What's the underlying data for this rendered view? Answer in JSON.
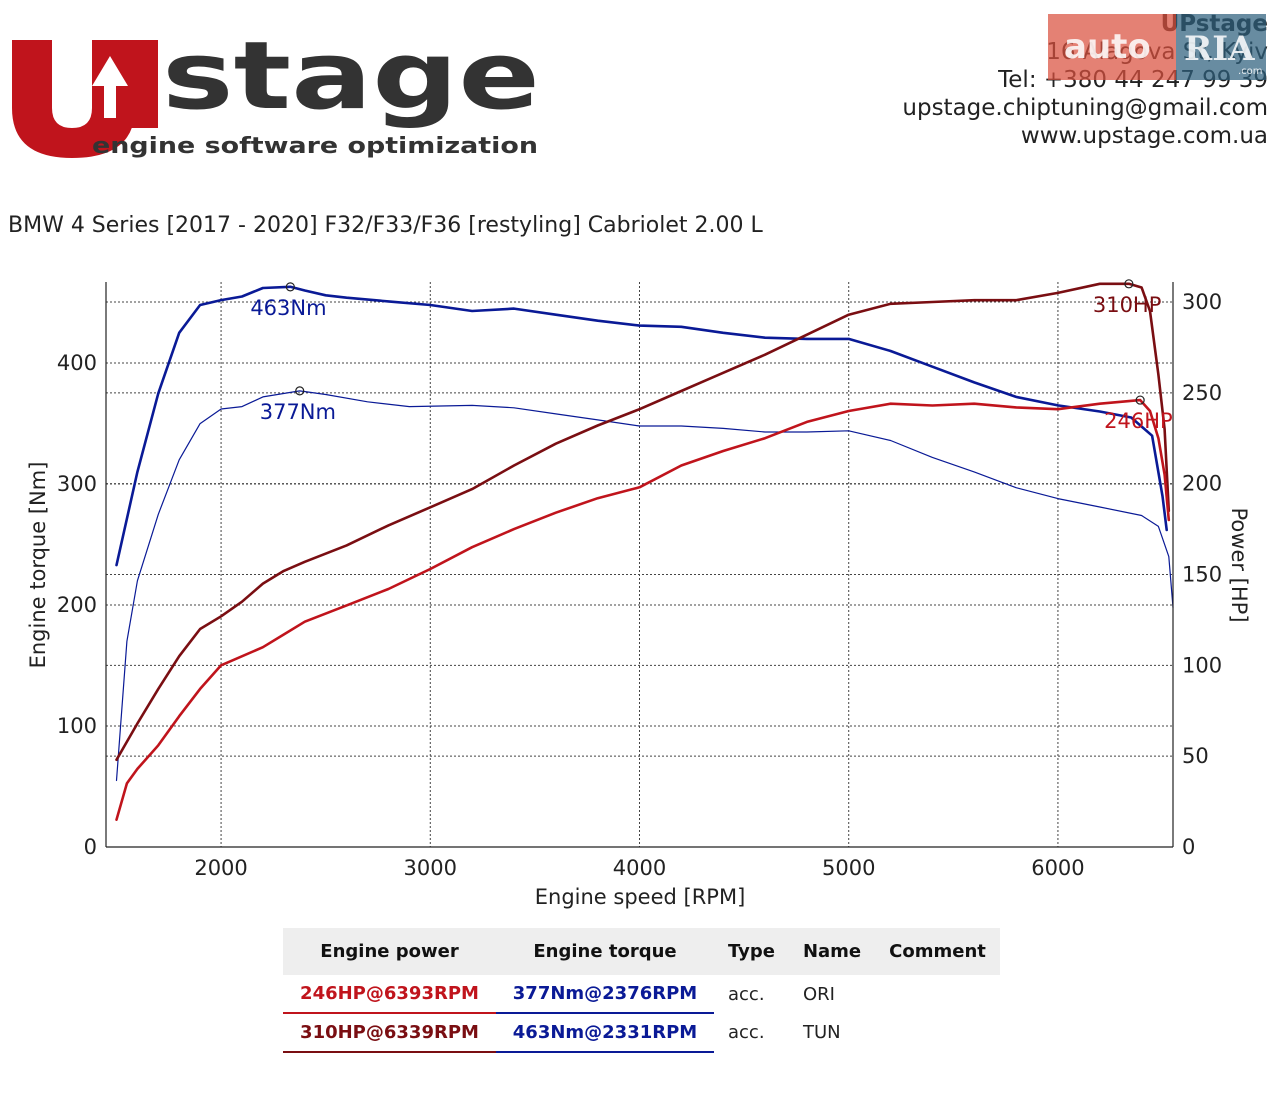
{
  "brand": {
    "logo_letters": "stage",
    "tagline": "engine software optimization",
    "colors": {
      "red": "#c0141c",
      "dark": "#333333"
    }
  },
  "company": {
    "name": "UPstage",
    "address": "16 Alagova St, Kyiv",
    "phone": "Tel: +380 44 247 99 39",
    "email": "upstage.chiptuning@gmail.com",
    "website": "www.upstage.com.ua"
  },
  "watermark": {
    "text": "auto",
    "text2": "RIA",
    "suffix": ".com"
  },
  "vehicle_title": "BMW 4 Series [2017 - 2020] F32/F33/F36 [restyling] Cabriolet 2.00 L",
  "chart_data": {
    "type": "line",
    "xlabel": "Engine speed [RPM]",
    "ylabel_left": "Engine torque [Nm]",
    "ylabel_right": "Power [HP]",
    "xlim": [
      1450,
      6550
    ],
    "ylim_left": [
      0,
      467
    ],
    "ylim_right": [
      0,
      311
    ],
    "x_ticks": [
      2000,
      3000,
      4000,
      5000,
      6000
    ],
    "y_ticks_left": [
      0,
      100,
      200,
      300,
      400
    ],
    "y_ticks_right": [
      0,
      50,
      100,
      150,
      200,
      250,
      300
    ],
    "grid": true,
    "series": [
      {
        "name": "TUN",
        "axis": "left",
        "color": "#0a1a96",
        "width": 2.6,
        "points": [
          [
            1500,
            233
          ],
          [
            1600,
            310
          ],
          [
            1700,
            375
          ],
          [
            1800,
            425
          ],
          [
            1900,
            448
          ],
          [
            2000,
            452
          ],
          [
            2100,
            455
          ],
          [
            2200,
            462
          ],
          [
            2331,
            463
          ],
          [
            2400,
            460
          ],
          [
            2500,
            456
          ],
          [
            2600,
            454
          ],
          [
            2800,
            451
          ],
          [
            3000,
            448
          ],
          [
            3200,
            443
          ],
          [
            3400,
            445
          ],
          [
            3600,
            440
          ],
          [
            3800,
            435
          ],
          [
            4000,
            431
          ],
          [
            4200,
            430
          ],
          [
            4400,
            425
          ],
          [
            4600,
            421
          ],
          [
            4800,
            420
          ],
          [
            5000,
            420
          ],
          [
            5200,
            410
          ],
          [
            5400,
            397
          ],
          [
            5600,
            384
          ],
          [
            5800,
            372
          ],
          [
            6000,
            365
          ],
          [
            6200,
            360
          ],
          [
            6350,
            355
          ],
          [
            6450,
            340
          ],
          [
            6500,
            290
          ],
          [
            6520,
            262
          ]
        ]
      },
      {
        "name": "ORI",
        "axis": "left",
        "color": "#0a1a96",
        "width": 1.2,
        "points": [
          [
            1500,
            55
          ],
          [
            1550,
            170
          ],
          [
            1600,
            220
          ],
          [
            1700,
            275
          ],
          [
            1800,
            320
          ],
          [
            1900,
            350
          ],
          [
            2000,
            362
          ],
          [
            2100,
            364
          ],
          [
            2200,
            372
          ],
          [
            2376,
            377
          ],
          [
            2500,
            374
          ],
          [
            2700,
            368
          ],
          [
            2900,
            364
          ],
          [
            3200,
            365
          ],
          [
            3400,
            363
          ],
          [
            3600,
            358
          ],
          [
            3800,
            353
          ],
          [
            4000,
            348
          ],
          [
            4200,
            348
          ],
          [
            4400,
            346
          ],
          [
            4600,
            343
          ],
          [
            4800,
            343
          ],
          [
            5000,
            344
          ],
          [
            5200,
            336
          ],
          [
            5400,
            322
          ],
          [
            5600,
            310
          ],
          [
            5800,
            297
          ],
          [
            6000,
            288
          ],
          [
            6200,
            281
          ],
          [
            6400,
            274
          ],
          [
            6480,
            265
          ],
          [
            6530,
            240
          ],
          [
            6550,
            198
          ]
        ]
      },
      {
        "name": "TUN",
        "axis": "right",
        "color": "#7a0e12",
        "width": 2.6,
        "points": [
          [
            1500,
            48
          ],
          [
            1600,
            68
          ],
          [
            1700,
            87
          ],
          [
            1800,
            105
          ],
          [
            1900,
            120
          ],
          [
            2000,
            127
          ],
          [
            2100,
            135
          ],
          [
            2200,
            145
          ],
          [
            2300,
            152
          ],
          [
            2400,
            157
          ],
          [
            2600,
            166
          ],
          [
            2800,
            177
          ],
          [
            3000,
            187
          ],
          [
            3200,
            197
          ],
          [
            3400,
            210
          ],
          [
            3600,
            222
          ],
          [
            3800,
            232
          ],
          [
            4000,
            241
          ],
          [
            4200,
            251
          ],
          [
            4400,
            261
          ],
          [
            4600,
            271
          ],
          [
            4800,
            282
          ],
          [
            5000,
            293
          ],
          [
            5200,
            299
          ],
          [
            5400,
            300
          ],
          [
            5600,
            301
          ],
          [
            5800,
            301
          ],
          [
            6000,
            305
          ],
          [
            6200,
            310
          ],
          [
            6339,
            310
          ],
          [
            6400,
            308
          ],
          [
            6440,
            295
          ],
          [
            6480,
            260
          ],
          [
            6510,
            230
          ],
          [
            6530,
            185
          ]
        ]
      },
      {
        "name": "ORI",
        "axis": "right",
        "color": "#c0141c",
        "width": 2.6,
        "points": [
          [
            1500,
            15
          ],
          [
            1550,
            35
          ],
          [
            1600,
            43
          ],
          [
            1700,
            56
          ],
          [
            1800,
            72
          ],
          [
            1900,
            87
          ],
          [
            2000,
            100
          ],
          [
            2200,
            110
          ],
          [
            2400,
            124
          ],
          [
            2600,
            133
          ],
          [
            2800,
            142
          ],
          [
            3000,
            153
          ],
          [
            3200,
            165
          ],
          [
            3400,
            175
          ],
          [
            3600,
            184
          ],
          [
            3800,
            192
          ],
          [
            4000,
            198
          ],
          [
            4200,
            210
          ],
          [
            4400,
            218
          ],
          [
            4600,
            225
          ],
          [
            4800,
            234
          ],
          [
            5000,
            240
          ],
          [
            5200,
            244
          ],
          [
            5400,
            243
          ],
          [
            5600,
            244
          ],
          [
            5800,
            242
          ],
          [
            6000,
            241
          ],
          [
            6200,
            244
          ],
          [
            6393,
            246
          ],
          [
            6440,
            240
          ],
          [
            6480,
            225
          ],
          [
            6510,
            205
          ],
          [
            6530,
            180
          ]
        ]
      }
    ],
    "annotations": [
      {
        "text": "463Nm",
        "x": 2331,
        "y": 463,
        "axis": "left",
        "color": "#0a1a96",
        "dx": -40,
        "dy": 28
      },
      {
        "text": "377Nm",
        "x": 2376,
        "y": 377,
        "axis": "left",
        "color": "#0a1a96",
        "dx": -40,
        "dy": 28
      },
      {
        "text": "310HP",
        "x": 6339,
        "y": 310,
        "axis": "right",
        "color": "#7a0e12",
        "dx": -36,
        "dy": 28
      },
      {
        "text": "246HP",
        "x": 6393,
        "y": 246,
        "axis": "right",
        "color": "#c0141c",
        "dx": -36,
        "dy": 28
      }
    ]
  },
  "results_table": {
    "headers": [
      "Engine power",
      "Engine torque",
      "Type",
      "Name",
      "Comment"
    ],
    "rows": [
      {
        "power": "246HP@6393RPM",
        "torque": "377Nm@2376RPM",
        "type": "acc.",
        "name": "ORI",
        "comment": "",
        "power_color": "#c0141c",
        "torque_color": "#0a1a96"
      },
      {
        "power": "310HP@6339RPM",
        "torque": "463Nm@2331RPM",
        "type": "acc.",
        "name": "TUN",
        "comment": "",
        "power_color": "#7a0e12",
        "torque_color": "#0a1a96"
      }
    ]
  }
}
